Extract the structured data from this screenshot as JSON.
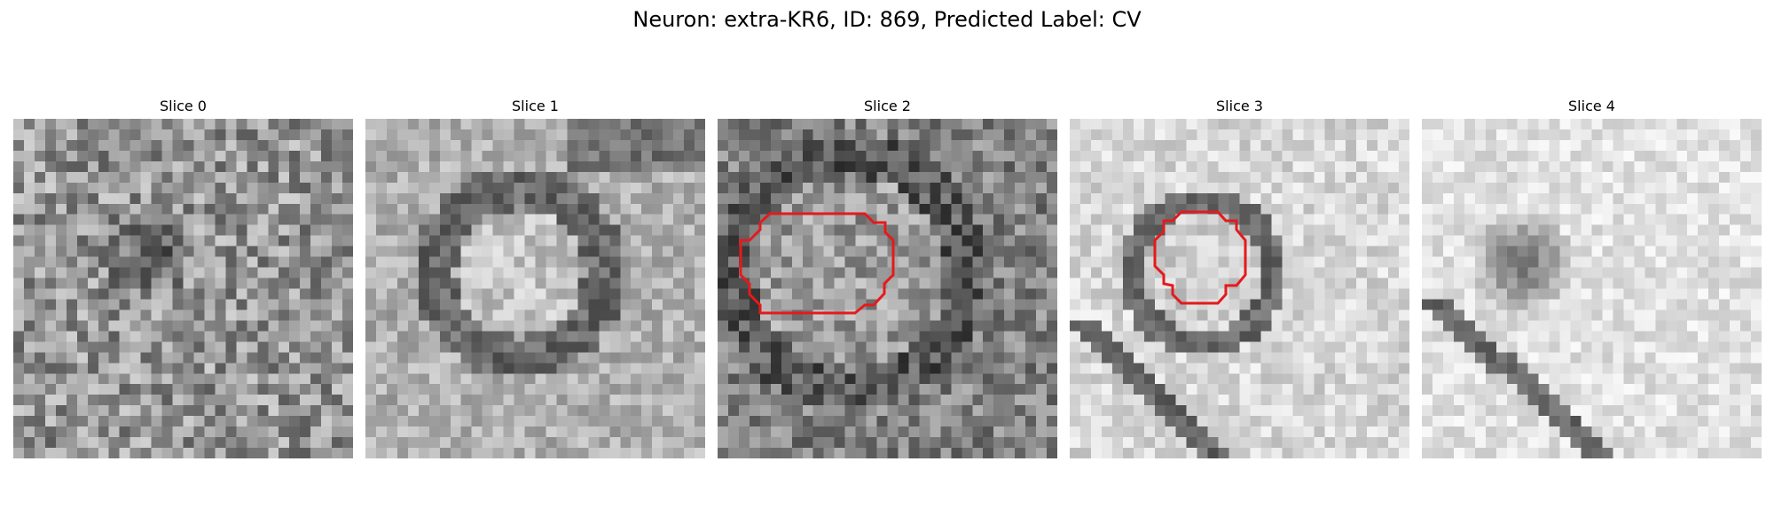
{
  "figure": {
    "title": "Neuron: extra-KR6, ID: 869, Predicted Label: CV"
  },
  "panels": [
    {
      "label": "Slice 0",
      "has_outline": false
    },
    {
      "label": "Slice 1",
      "has_outline": false
    },
    {
      "label": "Slice 2",
      "has_outline": true
    },
    {
      "label": "Slice 3",
      "has_outline": true
    },
    {
      "label": "Slice 4",
      "has_outline": false
    }
  ],
  "colors": {
    "outline": "#e41a1c"
  }
}
